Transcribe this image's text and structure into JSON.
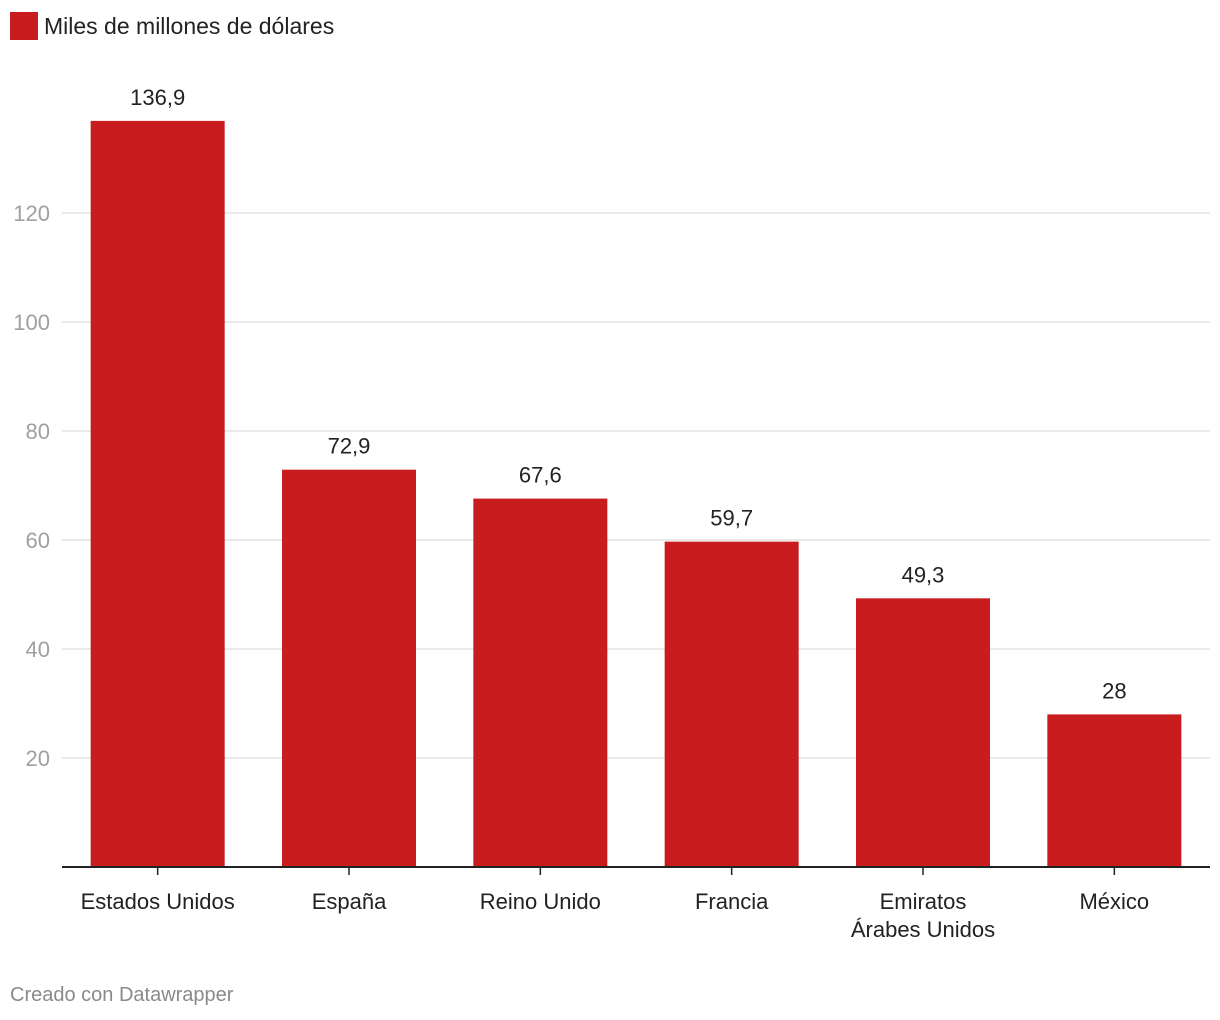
{
  "legend": {
    "label": "Miles de millones de dólares",
    "color": "#c81c1f"
  },
  "footer": {
    "credit": "Creado con Datawrapper"
  },
  "chart_data": {
    "type": "bar",
    "categories": [
      [
        "Estados Unidos"
      ],
      [
        "España"
      ],
      [
        "Reino Unido"
      ],
      [
        "Francia"
      ],
      [
        "Emiratos",
        "Árabes Unidos"
      ],
      [
        "México"
      ]
    ],
    "values": [
      136.9,
      72.9,
      67.6,
      59.7,
      49.3,
      28
    ],
    "value_labels": [
      "136,9",
      "72,9",
      "67,6",
      "59,7",
      "49,3",
      "28"
    ],
    "series": [
      {
        "name": "Miles de millones de dólares",
        "values": [
          136.9,
          72.9,
          67.6,
          59.7,
          49.3,
          28
        ]
      }
    ],
    "title": "",
    "xlabel": "",
    "ylabel": "",
    "ylim": [
      0,
      140
    ],
    "yticks": [
      20,
      40,
      60,
      80,
      100,
      120
    ],
    "grid": true,
    "legend_position": "top-left",
    "bar_color": "#c81c1f",
    "grid_color": "#e3e3e3",
    "axis_color": "#222222",
    "tick_label_color": "#a0a0a0"
  }
}
